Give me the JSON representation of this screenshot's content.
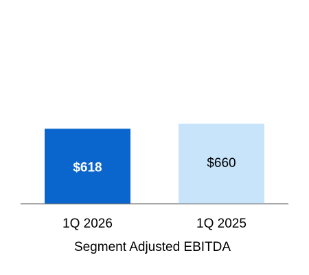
{
  "chart_data": {
    "type": "bar",
    "categories": [
      "1Q 2026",
      "1Q 2025"
    ],
    "values": [
      618,
      660
    ],
    "value_labels": [
      "$618",
      "$660"
    ],
    "colors": [
      "#0a66cc",
      "#c7e4fb"
    ],
    "x_label": "Segment Adjusted EBITDA"
  }
}
